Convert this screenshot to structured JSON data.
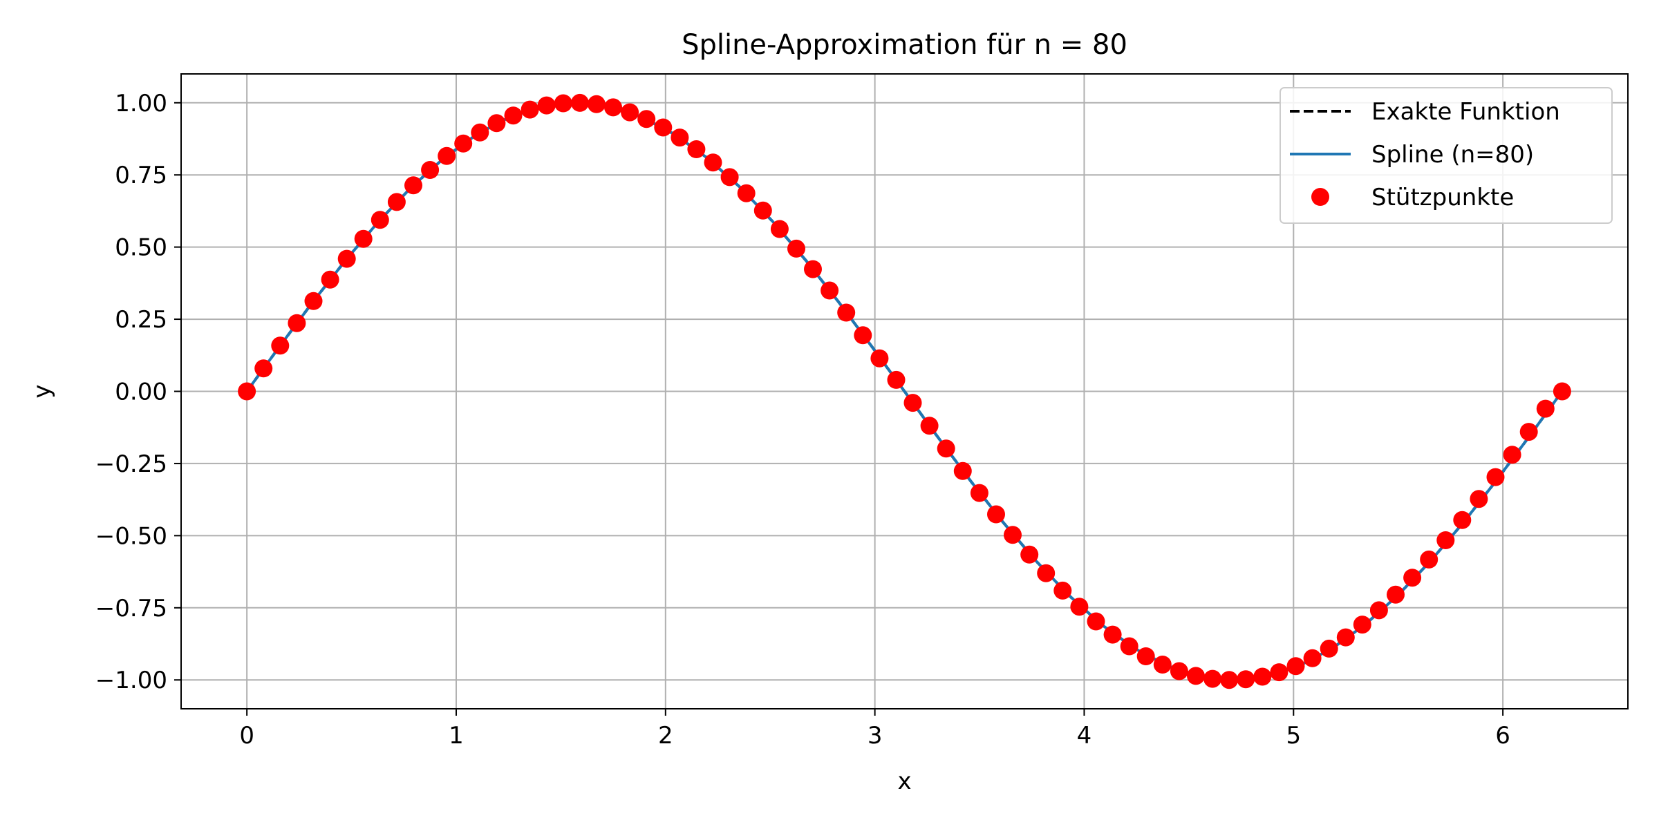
{
  "chart_data": {
    "type": "line",
    "title": "Spline-Approximation für n = 80",
    "xlabel": "x",
    "ylabel": "y",
    "xlim": [
      -0.3142,
      6.5973
    ],
    "ylim": [
      -1.1,
      1.1
    ],
    "xticks": [
      0,
      1,
      2,
      3,
      4,
      5,
      6
    ],
    "xtick_labels": [
      "0",
      "1",
      "2",
      "3",
      "4",
      "5",
      "6"
    ],
    "yticks": [
      1.0,
      0.75,
      0.5,
      0.25,
      0.0,
      -0.25,
      -0.5,
      -0.75,
      -1.0
    ],
    "ytick_labels": [
      "1.00",
      "0.75",
      "0.50",
      "0.25",
      "0.00",
      "−0.25",
      "−0.50",
      "−0.75",
      "−1.00"
    ],
    "grid": true,
    "legend_position": "top-right",
    "series": [
      {
        "name": "Exakte Funktion",
        "kind": "line",
        "style": "dashed",
        "color": "#000000",
        "x": [
          0,
          0.1571,
          0.3142,
          0.4712,
          0.6283,
          0.7854,
          0.9425,
          1.0996,
          1.2566,
          1.4137,
          1.5708,
          1.7279,
          1.885,
          2.042,
          2.1991,
          2.3562,
          2.5133,
          2.6704,
          2.8274,
          2.9845,
          3.1416,
          3.2987,
          3.4558,
          3.6128,
          3.7699,
          3.927,
          4.0841,
          4.2412,
          4.3982,
          4.5553,
          4.7124,
          4.8695,
          5.0265,
          5.1836,
          5.3407,
          5.4978,
          5.6549,
          5.8119,
          5.969,
          6.1261,
          6.2832
        ],
        "y": [
          0,
          0.1564,
          0.309,
          0.454,
          0.5878,
          0.7071,
          0.809,
          0.891,
          0.9511,
          0.9877,
          1.0,
          0.9877,
          0.9511,
          0.891,
          0.809,
          0.7071,
          0.5878,
          0.454,
          0.309,
          0.1564,
          0,
          -0.1564,
          -0.309,
          -0.454,
          -0.5878,
          -0.7071,
          -0.809,
          -0.891,
          -0.9511,
          -0.9877,
          -1.0,
          -0.9877,
          -0.9511,
          -0.891,
          -0.809,
          -0.7071,
          -0.5878,
          -0.454,
          -0.309,
          -0.1564,
          0
        ]
      },
      {
        "name": "Spline (n=80)",
        "kind": "line",
        "style": "solid",
        "color": "#1f77b4",
        "x": [
          0,
          0.1571,
          0.3142,
          0.4712,
          0.6283,
          0.7854,
          0.9425,
          1.0996,
          1.2566,
          1.4137,
          1.5708,
          1.7279,
          1.885,
          2.042,
          2.1991,
          2.3562,
          2.5133,
          2.6704,
          2.8274,
          2.9845,
          3.1416,
          3.2987,
          3.4558,
          3.6128,
          3.7699,
          3.927,
          4.0841,
          4.2412,
          4.3982,
          4.5553,
          4.7124,
          4.8695,
          5.0265,
          5.1836,
          5.3407,
          5.4978,
          5.6549,
          5.8119,
          5.969,
          6.1261,
          6.2832
        ],
        "y": [
          0,
          0.1564,
          0.309,
          0.454,
          0.5878,
          0.7071,
          0.809,
          0.891,
          0.9511,
          0.9877,
          1.0,
          0.9877,
          0.9511,
          0.891,
          0.809,
          0.7071,
          0.5878,
          0.454,
          0.309,
          0.1564,
          0,
          -0.1564,
          -0.309,
          -0.454,
          -0.5878,
          -0.7071,
          -0.809,
          -0.891,
          -0.9511,
          -0.9877,
          -1.0,
          -0.9877,
          -0.9511,
          -0.891,
          -0.809,
          -0.7071,
          -0.5878,
          -0.454,
          -0.309,
          -0.1564,
          0
        ]
      },
      {
        "name": "Stützpunkte",
        "kind": "scatter",
        "color": "#ff0000",
        "x": [
          0,
          0.0795,
          0.1591,
          0.2386,
          0.3181,
          0.3977,
          0.4772,
          0.5567,
          0.6363,
          0.7158,
          0.7953,
          0.8749,
          0.9544,
          1.0339,
          1.1135,
          1.193,
          1.2725,
          1.3521,
          1.4316,
          1.5111,
          1.5907,
          1.6702,
          1.7497,
          1.8293,
          1.9088,
          1.9883,
          2.0679,
          2.1474,
          2.2269,
          2.3065,
          2.386,
          2.4655,
          2.5451,
          2.6246,
          2.7041,
          2.7837,
          2.8632,
          2.9427,
          3.0223,
          3.1018,
          3.1813,
          3.2609,
          3.3404,
          3.4199,
          3.4995,
          3.579,
          3.6585,
          3.7381,
          3.8176,
          3.8971,
          3.9767,
          4.0562,
          4.1357,
          4.2153,
          4.2948,
          4.3743,
          4.4539,
          4.5334,
          4.6129,
          4.6925,
          4.772,
          4.8515,
          4.9311,
          5.0106,
          5.0901,
          5.1697,
          5.2492,
          5.3287,
          5.4083,
          5.4878,
          5.5673,
          5.6469,
          5.7264,
          5.8059,
          5.8855,
          5.965,
          6.0445,
          6.1241,
          6.2036,
          6.2832
        ],
        "y": [
          0,
          0.0794,
          0.1584,
          0.2364,
          0.313,
          0.3874,
          0.4595,
          0.5285,
          0.5942,
          0.6561,
          0.7139,
          0.7672,
          0.8156,
          0.8589,
          0.8969,
          0.9292,
          0.9558,
          0.9764,
          0.9909,
          0.9982,
          0.9998,
          0.9951,
          0.9841,
          0.9669,
          0.9437,
          0.9145,
          0.8795,
          0.839,
          0.7932,
          0.7423,
          0.6866,
          0.6266,
          0.5625,
          0.4946,
          0.4235,
          0.3495,
          0.273,
          0.1945,
          0.1145,
          0.0397,
          -0.0397,
          -0.1191,
          -0.1981,
          -0.276,
          -0.3522,
          -0.4262,
          -0.4975,
          -0.5656,
          -0.63,
          -0.6903,
          -0.7461,
          -0.7971,
          -0.8429,
          -0.8833,
          -0.918,
          -0.9468,
          -0.9695,
          -0.986,
          -0.9962,
          -1.0,
          -0.9975,
          -0.9886,
          -0.9734,
          -0.9521,
          -0.9247,
          -0.8914,
          -0.8525,
          -0.8082,
          -0.7587,
          -0.7044,
          -0.6456,
          -0.5826,
          -0.5159,
          -0.4458,
          -0.3728,
          -0.2972,
          -0.2195,
          -0.1403,
          -0.0601,
          0
        ]
      }
    ]
  }
}
